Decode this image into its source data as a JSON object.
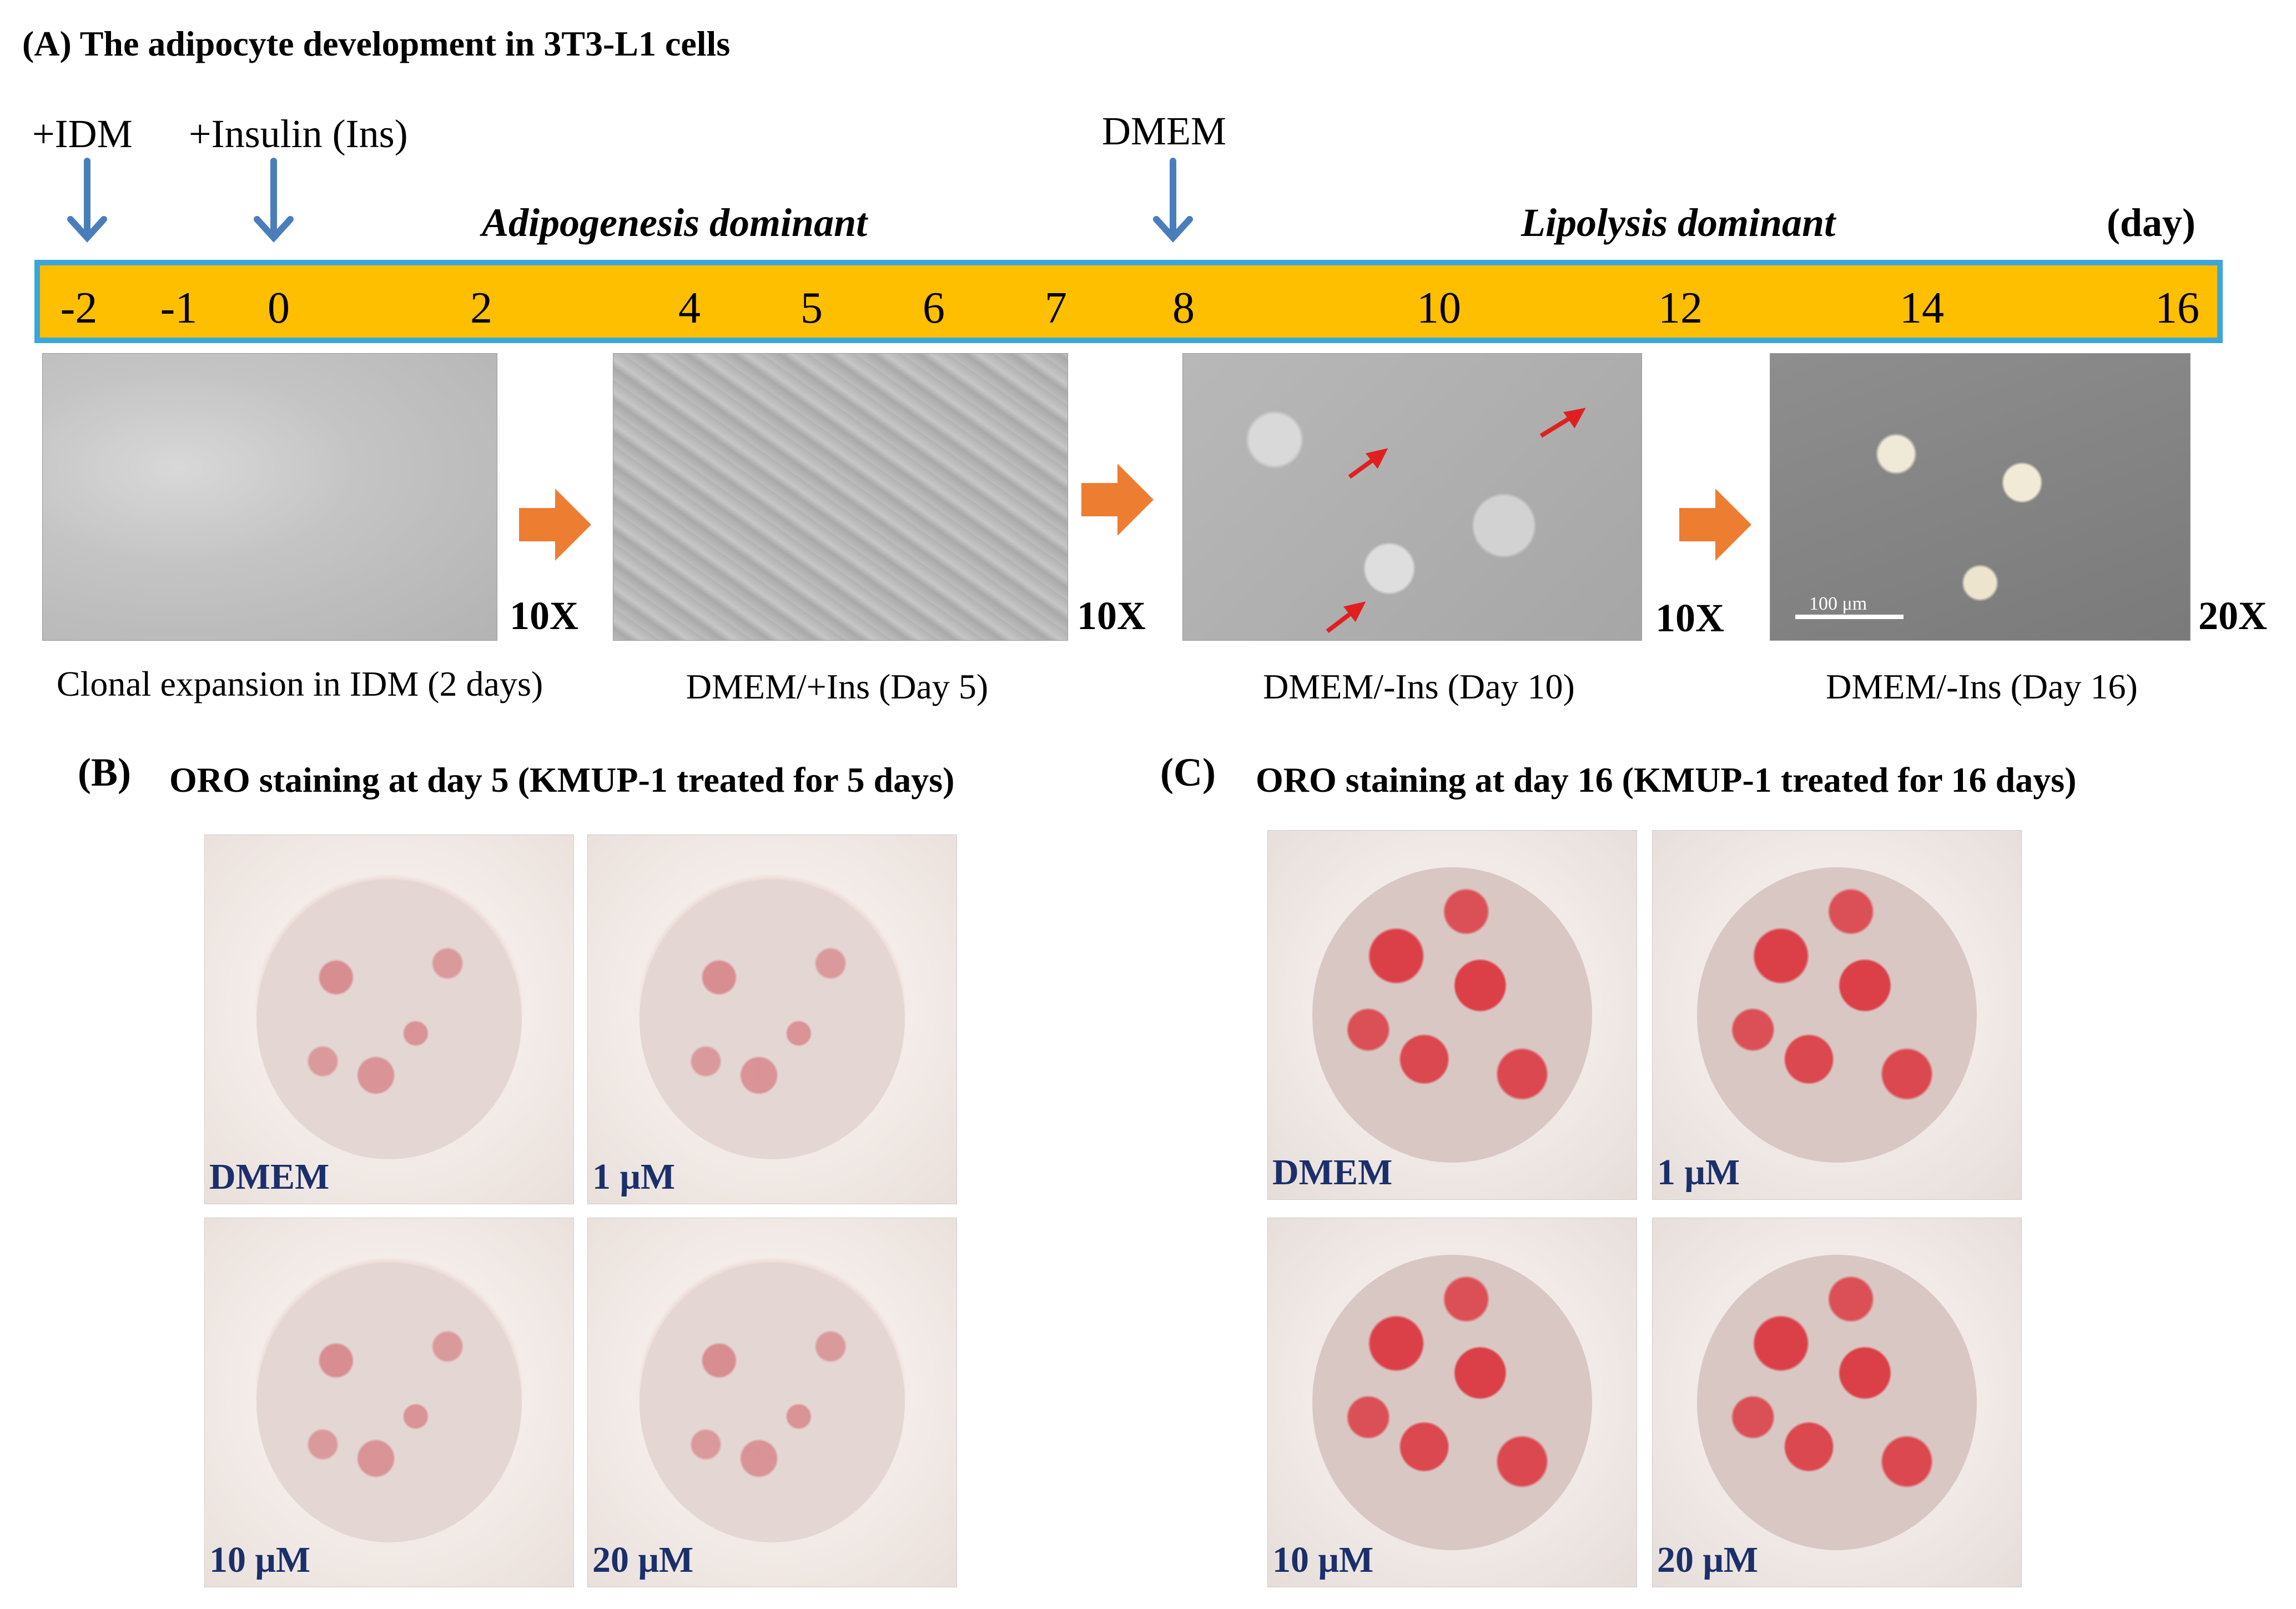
{
  "panel_a": {
    "letter": "(A)",
    "title": "The adipocyte development in 3T3-L1 cells",
    "annotations": {
      "idm": "+IDM",
      "insulin": "+Insulin (Ins)",
      "dmem": "DMEM"
    },
    "phases": {
      "adipogenesis": "Adipogenesis dominant",
      "lipolysis": "Lipolysis dominant"
    },
    "unit": "(day)",
    "days": [
      "-2",
      "-1",
      "0",
      "2",
      "4",
      "5",
      "6",
      "7",
      "8",
      "10",
      "12",
      "14",
      "16"
    ],
    "magnifications": [
      "10X",
      "10X",
      "10X",
      "20X"
    ],
    "scale_bar": "100 μm",
    "captions": [
      "Clonal expansion in IDM (2 days)",
      "DMEM/+Ins (Day 5)",
      "DMEM/-Ins (Day 10)",
      "DMEM/-Ins (Day 16)"
    ]
  },
  "panel_b": {
    "letter": "(B)",
    "title": "ORO staining at day 5 (KMUP-1 treated for 5 days)",
    "labels": [
      "DMEM",
      "1 μM",
      "10 μM",
      "20 μM"
    ]
  },
  "panel_c": {
    "letter": "(C)",
    "title": "ORO staining at day 16 (KMUP-1 treated for 16 days)",
    "labels": [
      "DMEM",
      "1 μM",
      "10 μM",
      "20 μM"
    ]
  },
  "colors": {
    "timeline_fill": "#FDBF00",
    "timeline_border": "#3AA6DC",
    "marker_arrow": "#4A7EBB",
    "step_arrow": "#ED7D31",
    "plate_label": "#1B2F6B"
  }
}
